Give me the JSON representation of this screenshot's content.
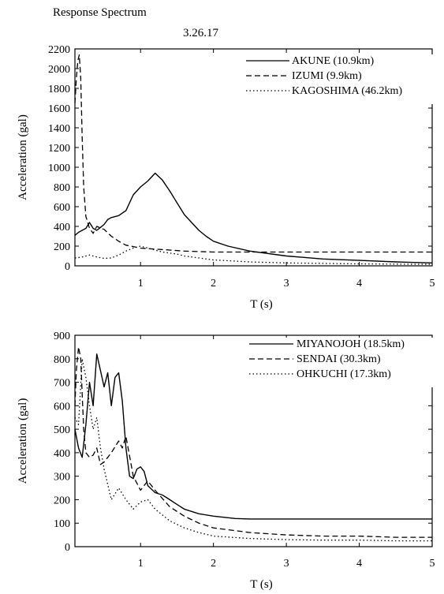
{
  "page": {
    "title": "Response Spectrum",
    "subtitle": "3.26.17"
  },
  "chart_data": [
    {
      "type": "line",
      "xlabel": "T (s)",
      "ylabel": "Acceleration (gal)",
      "xlim": [
        0.1,
        5
      ],
      "ylim": [
        0,
        2200
      ],
      "x_ticks": [
        1,
        2,
        3,
        4,
        5
      ],
      "y_ticks": [
        0,
        200,
        400,
        600,
        800,
        1000,
        1200,
        1400,
        1600,
        1800,
        2000,
        2200
      ],
      "grid": false,
      "legend_position": "top-right",
      "series": [
        {
          "name": "AKUNE (10.9km)",
          "style": "solid",
          "x": [
            0.1,
            0.15,
            0.2,
            0.25,
            0.3,
            0.35,
            0.4,
            0.45,
            0.5,
            0.55,
            0.6,
            0.7,
            0.8,
            0.9,
            1.0,
            1.1,
            1.2,
            1.3,
            1.4,
            1.5,
            1.6,
            1.7,
            1.8,
            1.9,
            2.0,
            2.2,
            2.5,
            3.0,
            3.5,
            4.0,
            4.5,
            5.0
          ],
          "values": [
            310,
            340,
            360,
            380,
            440,
            380,
            360,
            390,
            420,
            470,
            490,
            510,
            560,
            720,
            800,
            860,
            940,
            870,
            760,
            640,
            520,
            440,
            360,
            300,
            250,
            200,
            150,
            100,
            70,
            55,
            40,
            30
          ]
        },
        {
          "name": "IZUMI (9.9km)",
          "style": "dashed",
          "x": [
            0.1,
            0.12,
            0.14,
            0.16,
            0.18,
            0.2,
            0.22,
            0.25,
            0.3,
            0.35,
            0.4,
            0.5,
            0.6,
            0.7,
            0.8,
            0.9,
            1.0,
            1.2,
            1.4,
            1.6,
            1.8,
            2.0,
            2.5,
            3.0,
            3.5,
            4.0,
            4.5,
            5.0
          ],
          "values": [
            1650,
            1900,
            2080,
            2140,
            1900,
            1300,
            800,
            500,
            380,
            330,
            400,
            370,
            300,
            250,
            210,
            195,
            180,
            170,
            160,
            150,
            145,
            140,
            140,
            140,
            140,
            140,
            140,
            140
          ]
        },
        {
          "name": "KAGOSHIMA (46.2km)",
          "style": "dotted",
          "x": [
            0.1,
            0.2,
            0.3,
            0.4,
            0.5,
            0.6,
            0.7,
            0.8,
            0.9,
            1.0,
            1.1,
            1.2,
            1.3,
            1.4,
            1.5,
            1.6,
            1.8,
            2.0,
            2.5,
            3.0,
            3.5,
            4.0,
            5.0
          ],
          "values": [
            80,
            90,
            110,
            90,
            75,
            80,
            110,
            150,
            180,
            200,
            180,
            160,
            140,
            130,
            120,
            100,
            80,
            60,
            40,
            30,
            25,
            20,
            15
          ]
        }
      ]
    },
    {
      "type": "line",
      "xlabel": "T (s)",
      "ylabel": "Acceleration (gal)",
      "xlim": [
        0.1,
        5
      ],
      "ylim": [
        0,
        900
      ],
      "x_ticks": [
        1,
        2,
        3,
        4,
        5
      ],
      "y_ticks": [
        0,
        100,
        200,
        300,
        400,
        500,
        600,
        700,
        800,
        900
      ],
      "grid": false,
      "legend_position": "top-right",
      "series": [
        {
          "name": "MIYANOJOH (18.5km)",
          "style": "solid",
          "x": [
            0.1,
            0.15,
            0.2,
            0.25,
            0.3,
            0.35,
            0.4,
            0.45,
            0.5,
            0.55,
            0.6,
            0.65,
            0.7,
            0.75,
            0.8,
            0.85,
            0.9,
            0.95,
            1.0,
            1.05,
            1.1,
            1.2,
            1.3,
            1.4,
            1.5,
            1.6,
            1.7,
            1.8,
            2.0,
            2.3,
            2.5,
            3.0,
            3.5,
            4.0,
            4.5,
            5.0
          ],
          "values": [
            500,
            420,
            380,
            520,
            700,
            600,
            820,
            750,
            680,
            740,
            600,
            720,
            740,
            620,
            420,
            300,
            290,
            330,
            340,
            320,
            260,
            230,
            220,
            200,
            180,
            160,
            150,
            140,
            130,
            120,
            118,
            118,
            118,
            118,
            118,
            118
          ]
        },
        {
          "name": "SENDAI (30.3km)",
          "style": "dashed",
          "x": [
            0.1,
            0.12,
            0.15,
            0.18,
            0.2,
            0.22,
            0.25,
            0.3,
            0.35,
            0.4,
            0.45,
            0.5,
            0.6,
            0.7,
            0.75,
            0.8,
            0.9,
            1.0,
            1.1,
            1.2,
            1.4,
            1.6,
            1.8,
            2.0,
            2.5,
            3.0,
            3.5,
            4.0,
            4.5,
            5.0
          ],
          "values": [
            600,
            750,
            850,
            800,
            650,
            500,
            400,
            380,
            390,
            420,
            350,
            360,
            400,
            450,
            420,
            470,
            300,
            240,
            280,
            240,
            170,
            130,
            100,
            80,
            60,
            50,
            45,
            45,
            40,
            40
          ]
        },
        {
          "name": "OHKUCHI (17.3km)",
          "style": "dotted",
          "x": [
            0.1,
            0.15,
            0.2,
            0.25,
            0.3,
            0.35,
            0.4,
            0.45,
            0.5,
            0.6,
            0.7,
            0.8,
            0.9,
            1.0,
            1.1,
            1.2,
            1.4,
            1.6,
            1.8,
            2.0,
            2.5,
            3.0,
            3.5,
            4.0,
            4.5,
            5.0
          ],
          "values": [
            550,
            520,
            800,
            720,
            600,
            500,
            550,
            420,
            330,
            200,
            250,
            200,
            160,
            190,
            200,
            160,
            110,
            80,
            60,
            45,
            35,
            30,
            28,
            28,
            25,
            25
          ]
        }
      ]
    }
  ]
}
